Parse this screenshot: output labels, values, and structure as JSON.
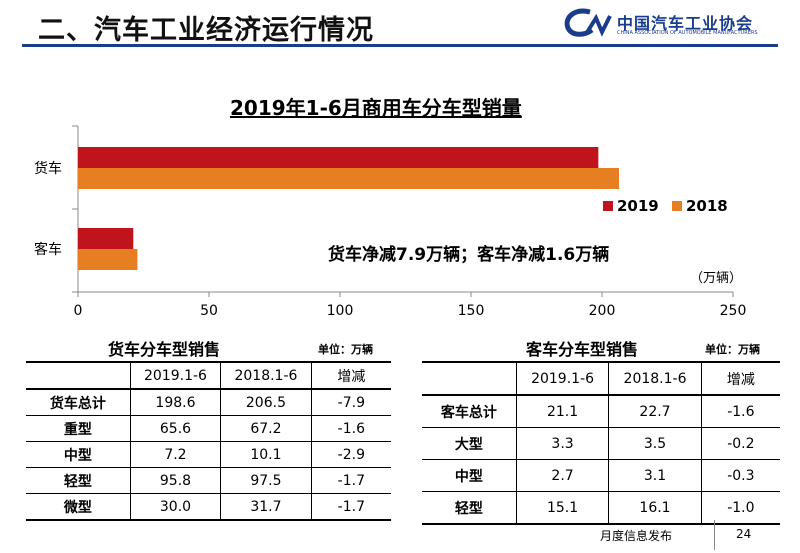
{
  "header": {
    "title": "二、汽车工业经济运行情况",
    "logo_cn": "中国汽车工业协会",
    "logo_en": "CHINA ASSOCIATION OF AUTOMOBILE MANUFACTURERS"
  },
  "chart_data": {
    "type": "bar",
    "orientation": "horizontal",
    "title": "2019年1-6月商用车分车型销量",
    "categories": [
      "货车",
      "客车"
    ],
    "series": [
      {
        "name": "2019",
        "values": [
          198.6,
          21.1
        ],
        "color": "#c0141c"
      },
      {
        "name": "2018",
        "values": [
          206.5,
          22.7
        ],
        "color": "#e67e22"
      }
    ],
    "xlim": [
      0,
      250
    ],
    "xticks": [
      0,
      50,
      100,
      150,
      200,
      250
    ],
    "unit": "（万辆）",
    "legend_position": "right",
    "annotation": "货车净减7.9万辆；客车净减1.6万辆"
  },
  "truck_table": {
    "title": "货车分车型销售",
    "unit": "单位：万辆",
    "headers": [
      "",
      "2019.1-6",
      "2018.1-6",
      "增减"
    ],
    "rows": [
      [
        "货车总计",
        "198.6",
        "206.5",
        "-7.9"
      ],
      [
        "重型",
        "65.6",
        "67.2",
        "-1.6"
      ],
      [
        "中型",
        "7.2",
        "10.1",
        "-2.9"
      ],
      [
        "轻型",
        "95.8",
        "97.5",
        "-1.7"
      ],
      [
        "微型",
        "30.0",
        "31.7",
        "-1.7"
      ]
    ]
  },
  "bus_table": {
    "title": "客车分车型销售",
    "unit": "单位：万辆",
    "headers": [
      "",
      "2019.1-6",
      "2018.1-6",
      "增减"
    ],
    "rows": [
      [
        "客车总计",
        "21.1",
        "22.7",
        "-1.6"
      ],
      [
        "大型",
        "3.3",
        "3.5",
        "-0.2"
      ],
      [
        "中型",
        "2.7",
        "3.1",
        "-0.3"
      ],
      [
        "轻型",
        "15.1",
        "16.1",
        "-1.0"
      ]
    ]
  },
  "footer": {
    "text": "月度信息发布",
    "page": "24"
  }
}
